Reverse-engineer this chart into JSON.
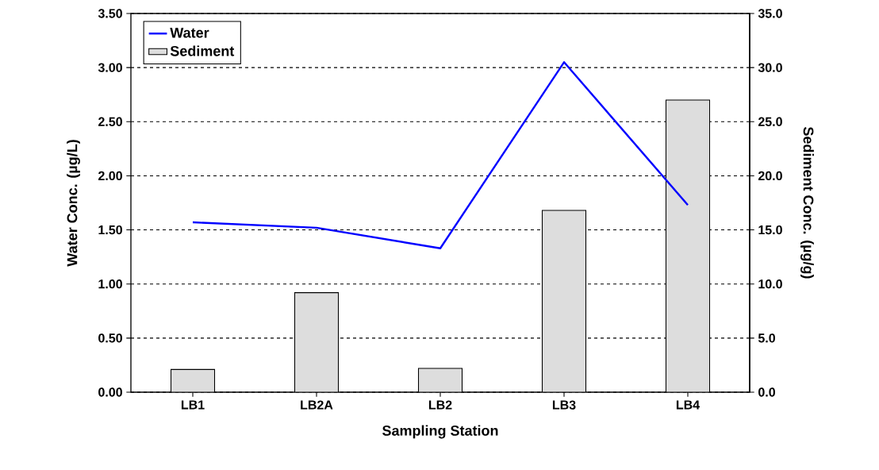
{
  "chart_data": {
    "type": "bar",
    "xlabel": "Sampling Station",
    "ylabel": "Water Conc. (µg/L)",
    "y2label": "Sediment Conc. (µg/g)",
    "categories": [
      "LB1",
      "LB2A",
      "LB2",
      "LB3",
      "LB4"
    ],
    "series": [
      {
        "name": "Water",
        "type": "line",
        "color": "#0000ff",
        "values": [
          1.57,
          1.52,
          1.33,
          3.05,
          1.73
        ]
      },
      {
        "name": "Sediment",
        "axis": "y2",
        "color": "#dddddd",
        "values": [
          2.1,
          9.2,
          2.2,
          16.8,
          27.0
        ]
      }
    ],
    "ylim": [
      0,
      3.5
    ],
    "yticks": [
      {
        "value": 0,
        "label": "0.00"
      },
      {
        "value": 0.5,
        "label": "0.50"
      },
      {
        "value": 1,
        "label": "1.00"
      },
      {
        "value": 1.5,
        "label": "1.50"
      },
      {
        "value": 2,
        "label": "2.00"
      },
      {
        "value": 2.5,
        "label": "2.50"
      },
      {
        "value": 3,
        "label": "3.00"
      },
      {
        "value": 3.5,
        "label": "3.50"
      }
    ],
    "y2lim": [
      0,
      35
    ],
    "y2ticks": [
      {
        "value": 0,
        "label": "0.0"
      },
      {
        "value": 5,
        "label": "5.0"
      },
      {
        "value": 10,
        "label": "10.0"
      },
      {
        "value": 15,
        "label": "15.0"
      },
      {
        "value": 20,
        "label": "20.0"
      },
      {
        "value": 25,
        "label": "25.0"
      },
      {
        "value": 30,
        "label": "30.0"
      },
      {
        "value": 35,
        "label": "35.0"
      }
    ],
    "grid": "y",
    "legend": "top left",
    "marker": "none",
    "line_style": "solid"
  }
}
